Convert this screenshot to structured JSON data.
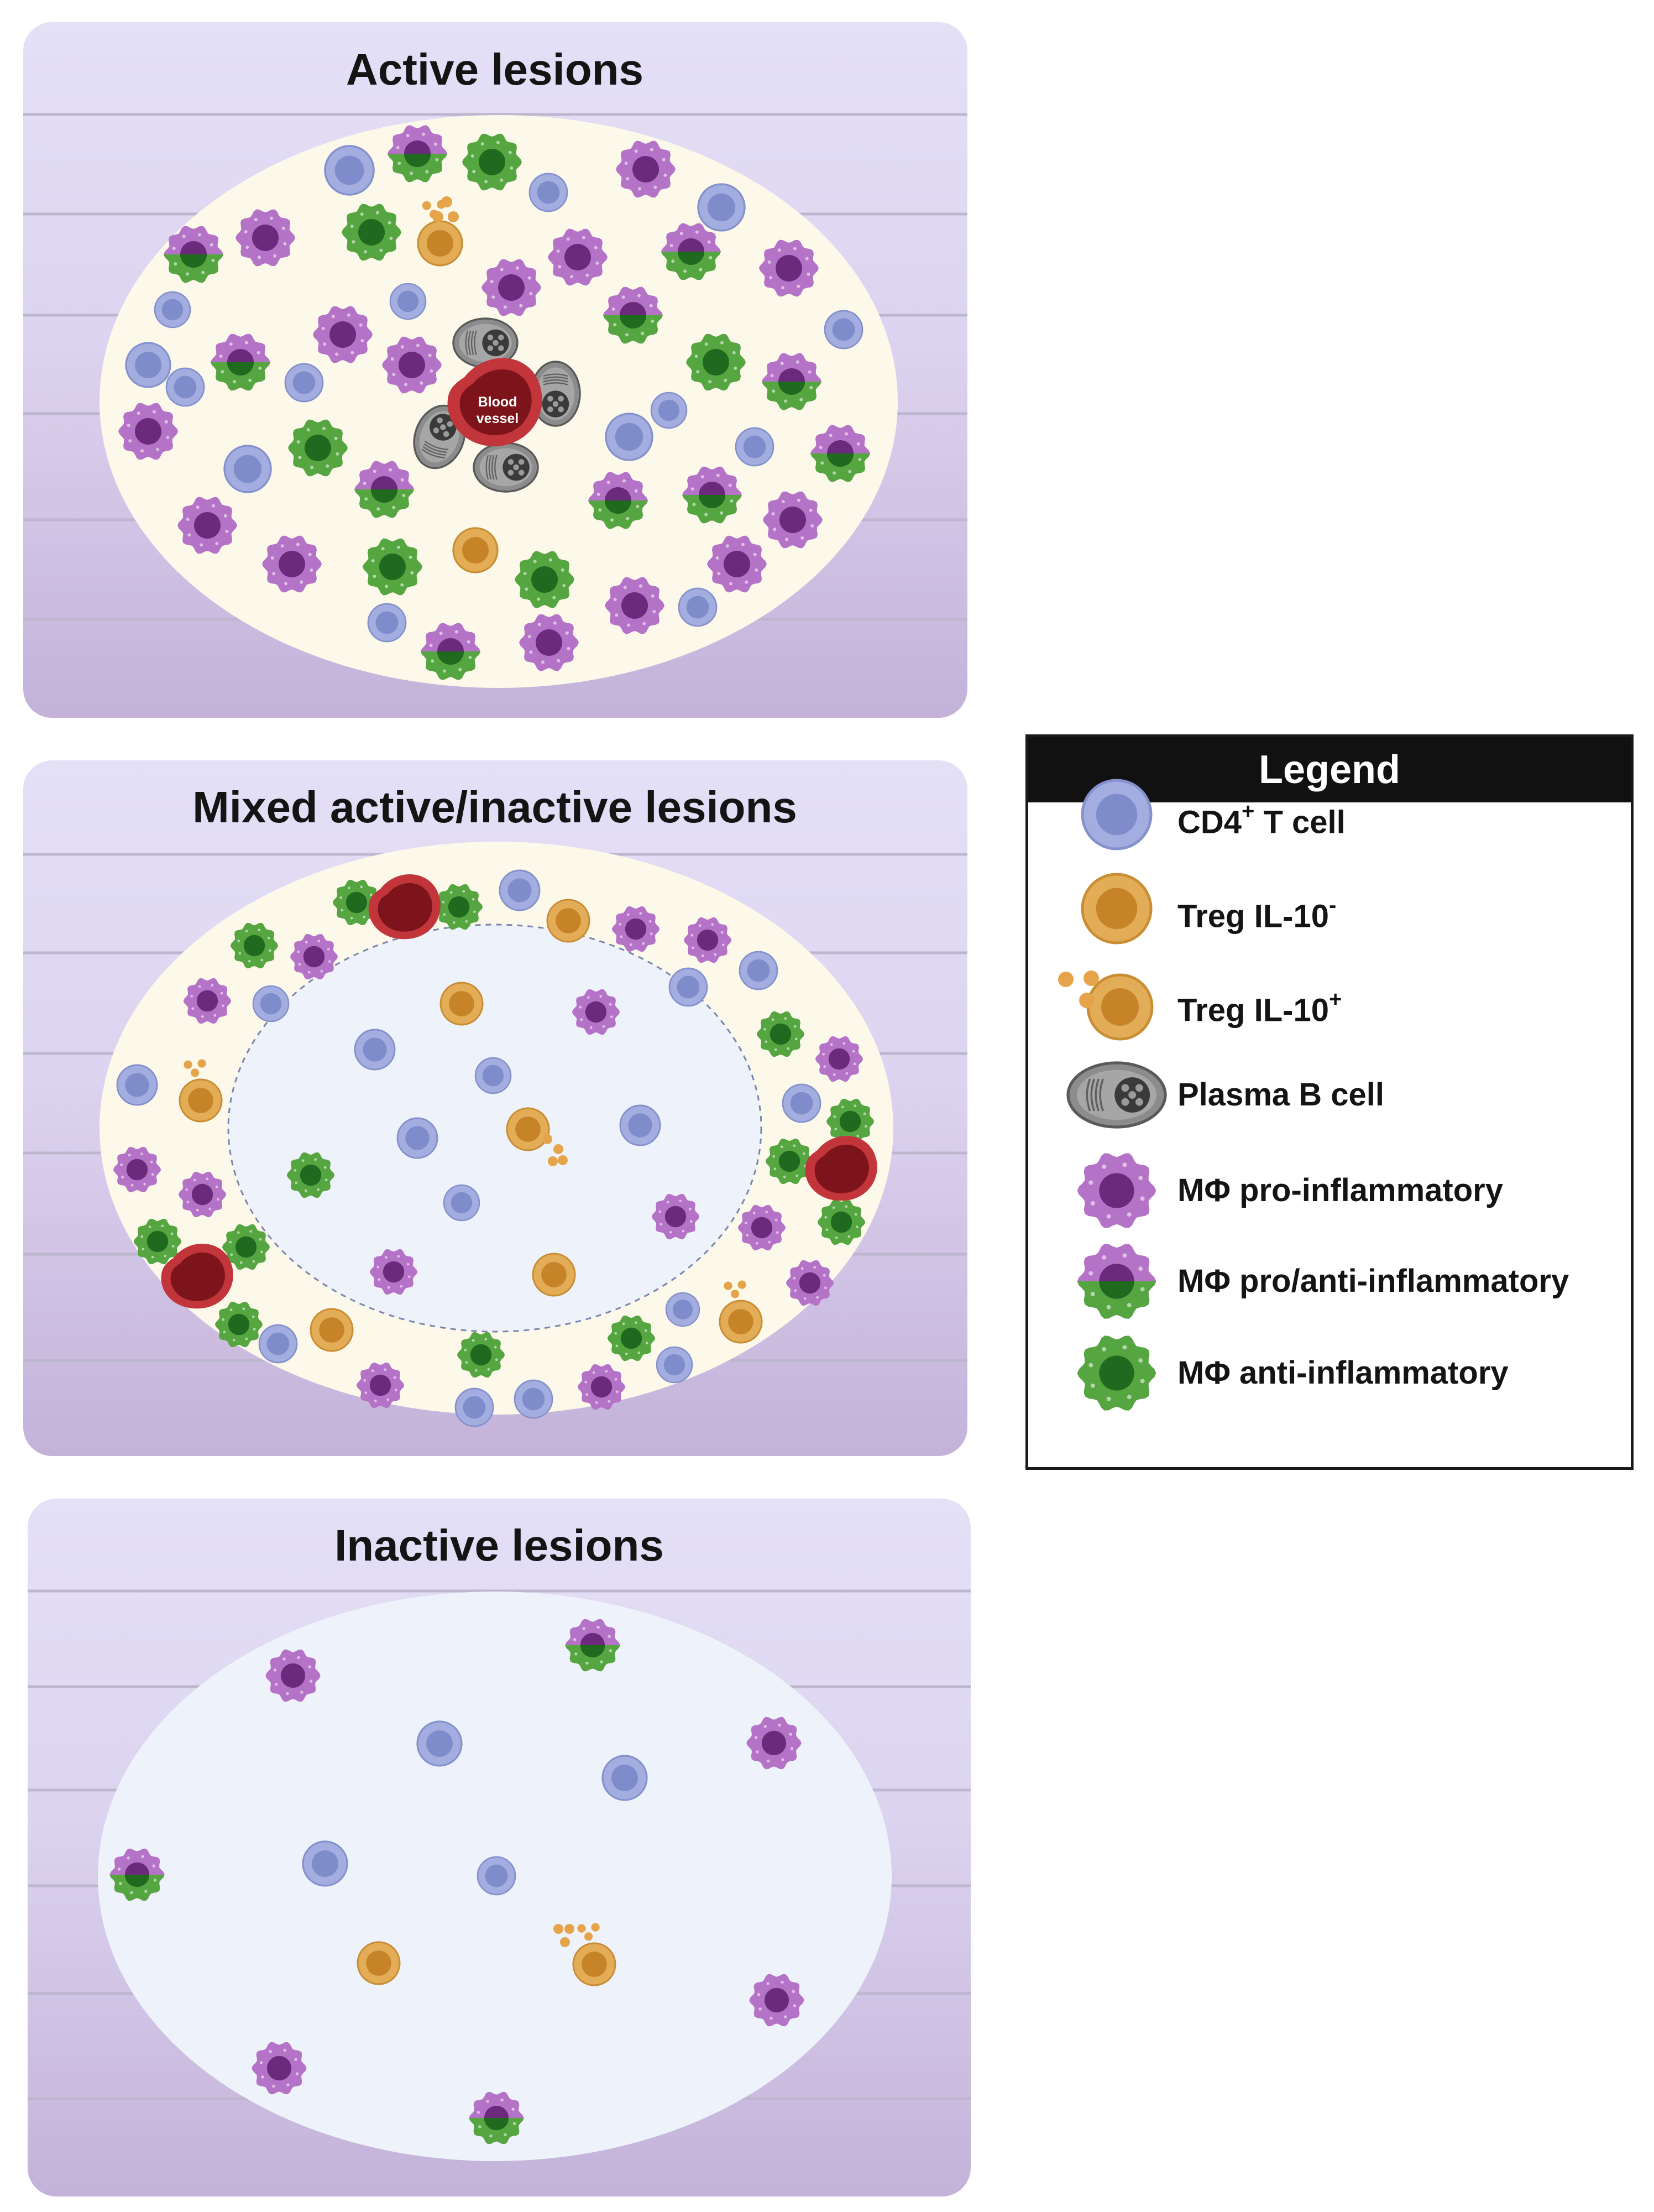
{
  "panels": {
    "active": {
      "title": "Active lesions",
      "vessel_label_line1": "Blood",
      "vessel_label_line2": "vessel"
    },
    "mixed": {
      "title": "Mixed active/inactive lesions"
    },
    "inactive": {
      "title": "Inactive lesions"
    }
  },
  "legend": {
    "title": "Legend",
    "items": [
      {
        "type": "tcell",
        "base": "CD4",
        "sup": "+",
        "rest": " T cell"
      },
      {
        "type": "treg_neg",
        "base": "Treg IL-10",
        "sup": "-",
        "rest": ""
      },
      {
        "type": "treg_pos",
        "base": "Treg IL-10",
        "sup": "+",
        "rest": ""
      },
      {
        "type": "plasma",
        "base": "Plasma B cell",
        "sup": "",
        "rest": ""
      },
      {
        "type": "mpro",
        "base": "MΦ pro-inflammatory",
        "sup": "",
        "rest": ""
      },
      {
        "type": "mmix",
        "base": "MΦ pro/anti-inflammatory",
        "sup": "",
        "rest": ""
      },
      {
        "type": "manti",
        "base": "MΦ anti-inflammatory",
        "sup": "",
        "rest": ""
      }
    ]
  },
  "colors": {
    "panel_top": "#e4e0f6",
    "panel_bottom": "#c4b2d9",
    "lesion_active_fill": "#fcf8ea",
    "lesion_inactive_fill": "#eef2fa",
    "tcell": "#9aa6dc",
    "treg": "#d9a04a",
    "macrophage_pro": "#b270c4",
    "macrophage_anti": "#4f9e3c",
    "blood_vessel": "#c2363b",
    "plasma": "#7a7a7a"
  }
}
